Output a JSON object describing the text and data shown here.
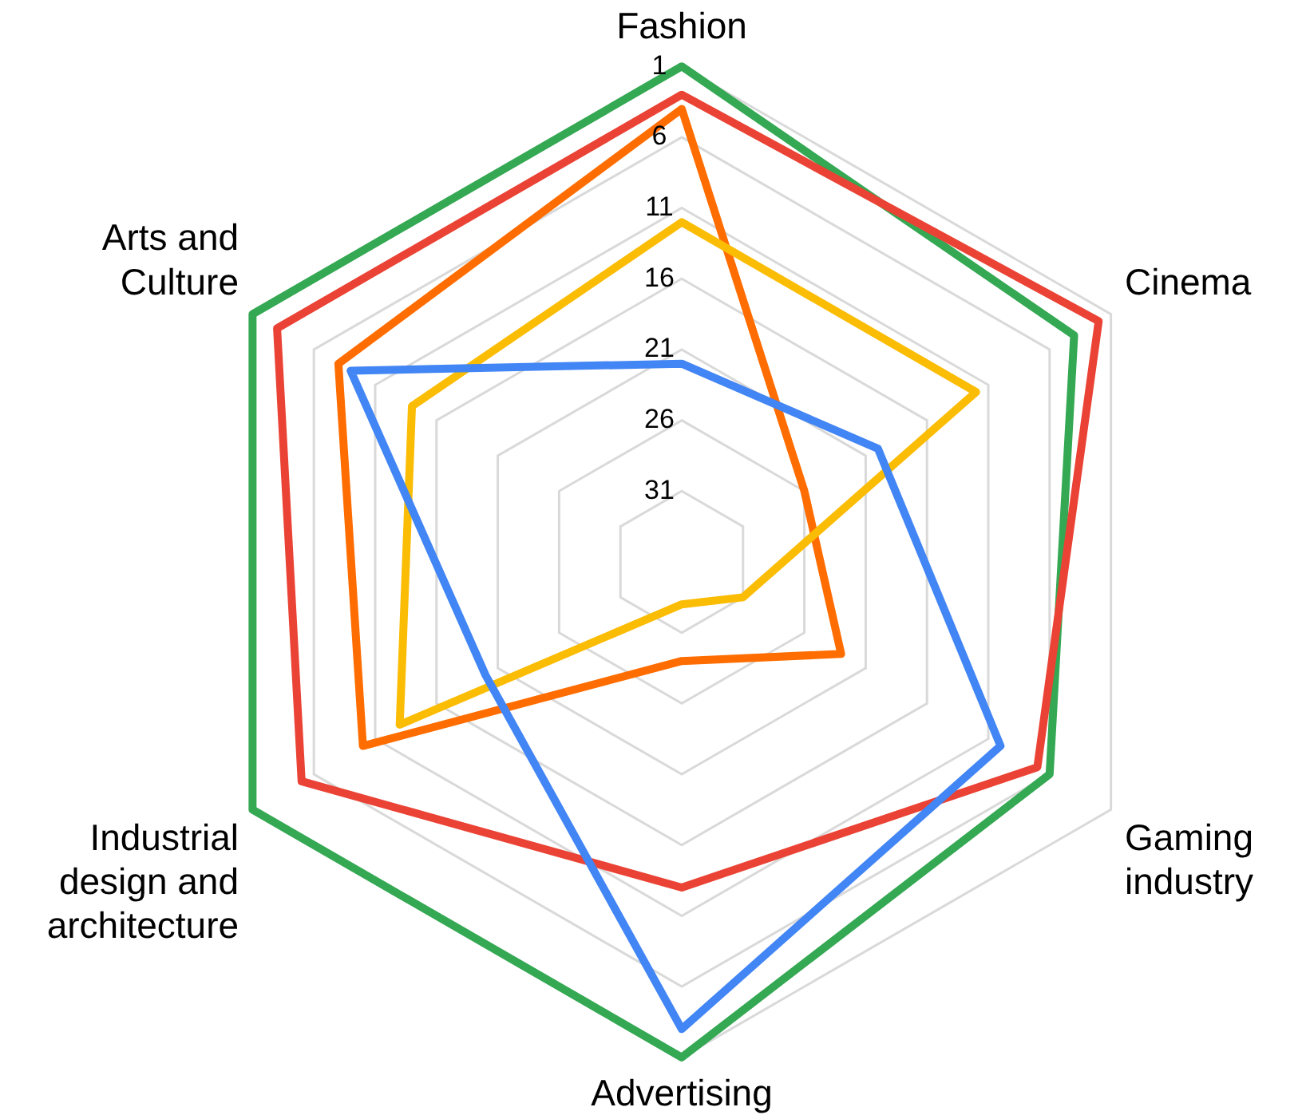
{
  "chart_data": {
    "type": "radar",
    "categories": [
      "Fashion",
      "Cinema",
      "Gaming industry",
      "Advertising",
      "Industrial design and architecture",
      "Arts and Culture"
    ],
    "series": [
      {
        "color": "#4285f4",
        "values": [
          22,
          20,
          10,
          3,
          20,
          9
        ]
      },
      {
        "color": "#fbbc04",
        "values": [
          12,
          12,
          31,
          33,
          13,
          14
        ]
      },
      {
        "color": "#ff6d01",
        "values": [
          4,
          26,
          23,
          29,
          10,
          8
        ]
      },
      {
        "color": "#ea4335",
        "values": [
          3,
          2,
          7,
          13,
          5,
          3
        ]
      },
      {
        "color": "#34a853",
        "values": [
          1,
          4,
          6,
          1,
          1,
          1
        ]
      }
    ],
    "ylim": [
      36,
      1
    ],
    "yticks": [
      1,
      6,
      11,
      16,
      21,
      26,
      31
    ],
    "grid": true,
    "legend": false,
    "marker": "none",
    "line_style": "solid"
  }
}
